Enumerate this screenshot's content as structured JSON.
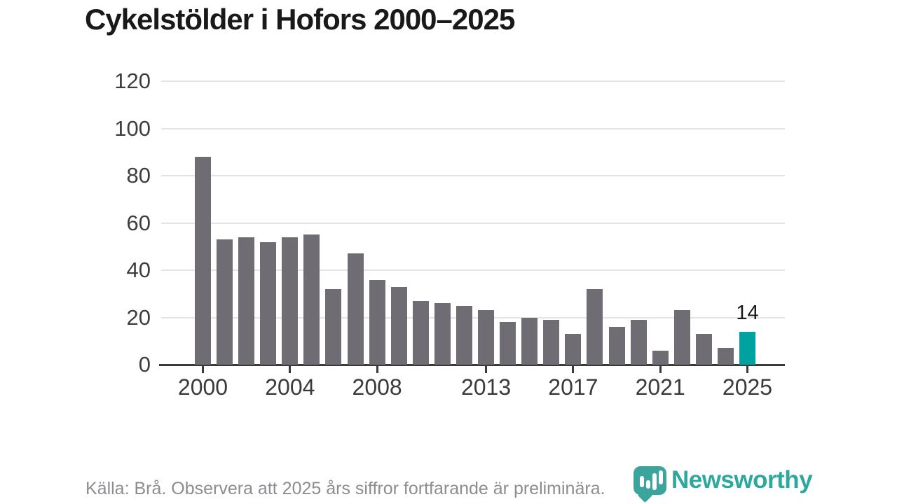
{
  "title": "Cykelstölder i Hofors 2000–2025",
  "footer": {
    "source_note": "Källa: Brå. Observera att 2025 års siffror fortfarande är preliminära."
  },
  "branding": {
    "logo_text": "Newsworthy",
    "logo_icon": "newsworthy-pin-icon",
    "brand_color": "#2ea79e",
    "pin_color": "#3ba49c"
  },
  "colors": {
    "bar": "#6f6d73",
    "highlight": "#00a1a1",
    "gridline": "#e4e4e5",
    "axis": "#3a3a3a",
    "title_text": "#191919",
    "axis_label_text": "#3d3d3d",
    "footer_text": "#8c8c92"
  },
  "annotation": {
    "last_value_label": "14"
  },
  "chart_data": {
    "type": "bar",
    "title": "Cykelstölder i Hofors 2000–2025",
    "x": [
      2000,
      2001,
      2002,
      2003,
      2004,
      2005,
      2006,
      2007,
      2008,
      2009,
      2010,
      2011,
      2012,
      2013,
      2014,
      2015,
      2016,
      2017,
      2018,
      2019,
      2020,
      2021,
      2022,
      2023,
      2024,
      2025
    ],
    "values": [
      88,
      53,
      54,
      52,
      54,
      55,
      32,
      47,
      36,
      33,
      27,
      26,
      25,
      23,
      18,
      20,
      19,
      13,
      32,
      16,
      19,
      6,
      23,
      13,
      7,
      14
    ],
    "highlight_index": 25,
    "highlighted_year": 2025,
    "value_labels": {
      "2025": 14
    },
    "ylim": [
      0,
      120
    ],
    "yticks": [
      0,
      20,
      40,
      60,
      80,
      100,
      120
    ],
    "xticks": [
      2000,
      2004,
      2008,
      2013,
      2017,
      2021,
      2025
    ],
    "xlabel": "",
    "ylabel": "",
    "grid": true,
    "legend": false
  }
}
